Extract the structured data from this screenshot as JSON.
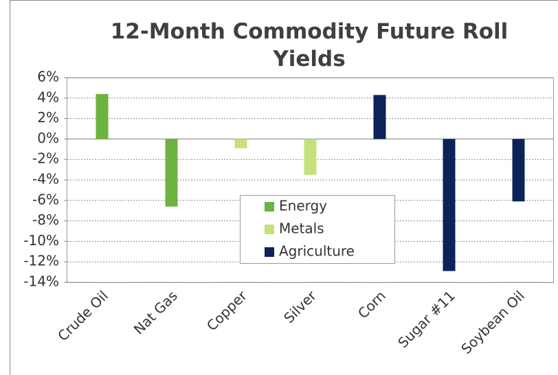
{
  "chart_data": {
    "type": "bar",
    "title": "12-Month Commodity Future Roll Yields",
    "categories": [
      "Crude Oil",
      "Nat Gas",
      "Copper",
      "Silver",
      "Corn",
      "Sugar #11",
      "Soybean Oil"
    ],
    "series": [
      {
        "name": "Energy",
        "color": "#6db33f",
        "values": [
          4.4,
          -6.6,
          null,
          null,
          null,
          null,
          null
        ]
      },
      {
        "name": "Metals",
        "color": "#c5e17a",
        "values": [
          null,
          null,
          -0.9,
          -3.5,
          null,
          null,
          null
        ]
      },
      {
        "name": "Agriculture",
        "color": "#0c2359",
        "values": [
          null,
          null,
          null,
          null,
          4.3,
          -12.9,
          -6.1
        ]
      }
    ],
    "ylim": [
      -14,
      6
    ],
    "yticks": [
      {
        "value": 6,
        "label": "6%"
      },
      {
        "value": 4,
        "label": "4%"
      },
      {
        "value": 2,
        "label": "2%"
      },
      {
        "value": 0,
        "label": "0%"
      },
      {
        "value": -2,
        "label": "-2%"
      },
      {
        "value": -4,
        "label": "-4%"
      },
      {
        "value": -6,
        "label": "-6%"
      },
      {
        "value": -8,
        "label": "-8%"
      },
      {
        "value": -10,
        "label": "-10%"
      },
      {
        "value": -12,
        "label": "-12%"
      },
      {
        "value": -14,
        "label": "-14%"
      }
    ],
    "grid": true,
    "legend": "center"
  }
}
